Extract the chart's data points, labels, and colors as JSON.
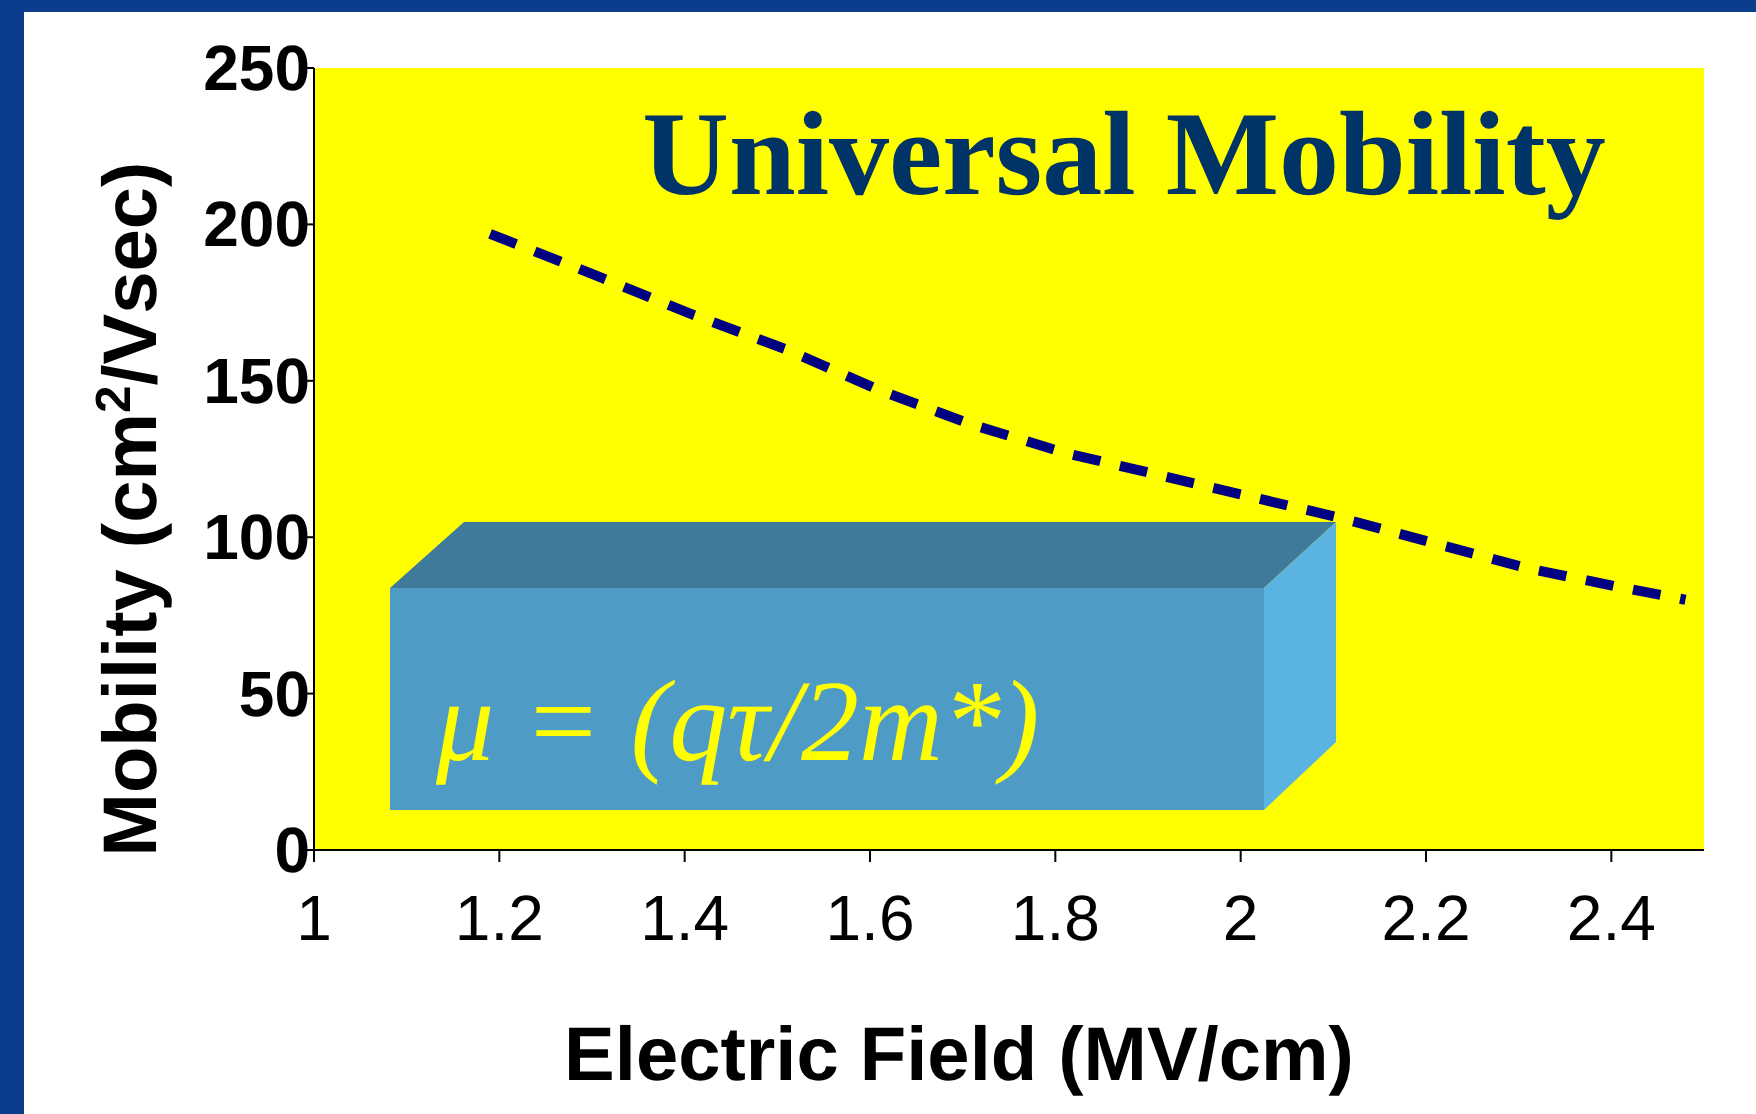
{
  "chart_data": {
    "type": "line",
    "title": "Universal Mobility",
    "xlabel": "Electric Field (MV/cm)",
    "ylabel": "Mobility (cm$^{2}$/Vsec)",
    "annotations": [
      "μ = (qτ/2m*)"
    ],
    "series": [
      {
        "color": "#000080",
        "line_style": "dashed",
        "x": [
          1.19,
          1.31,
          1.41,
          1.51,
          1.61,
          1.71,
          1.81,
          1.91,
          2.01,
          2.11,
          2.21,
          2.31,
          2.41,
          2.48
        ],
        "values": [
          197,
          183,
          171,
          160,
          147,
          136,
          127,
          120,
          113,
          106,
          98,
          90,
          84,
          80
        ]
      }
    ],
    "xlim": [
      1,
      2.5
    ],
    "xticks": [
      1,
      1.2,
      1.4,
      1.6,
      1.8,
      2,
      2.2,
      2.4
    ],
    "ylim": [
      0,
      250
    ],
    "yticks": [
      0,
      50,
      100,
      150,
      200,
      250
    ],
    "grid": false,
    "marker": "none"
  }
}
